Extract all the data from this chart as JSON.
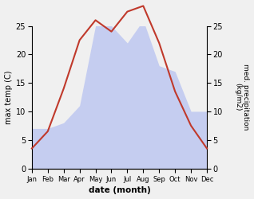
{
  "months": [
    "Jan",
    "Feb",
    "Mar",
    "Apr",
    "May",
    "Jun",
    "Jul",
    "Aug",
    "Sep",
    "Oct",
    "Nov",
    "Dec"
  ],
  "temperature": [
    3.5,
    6.5,
    14.0,
    22.5,
    26.0,
    24.0,
    27.5,
    28.5,
    22.0,
    13.5,
    7.5,
    3.5
  ],
  "precipitation": [
    7,
    7,
    8,
    11,
    25,
    25,
    22,
    26,
    18,
    17,
    10,
    10
  ],
  "temp_color": "#c0392b",
  "precip_color": "#c5cdf0",
  "temp_ylim": [
    0,
    25
  ],
  "precip_ylim": [
    0,
    25
  ],
  "temp_yticks": [
    0,
    5,
    10,
    15,
    20,
    25
  ],
  "precip_yticks": [
    0,
    5,
    10,
    15,
    20,
    25
  ],
  "xlabel": "date (month)",
  "ylabel_left": "max temp (C)",
  "ylabel_right": "med. precipitation\n(kg/m2)",
  "bg_color": "#f0f0f0",
  "plot_bg_color": "#ffffff"
}
